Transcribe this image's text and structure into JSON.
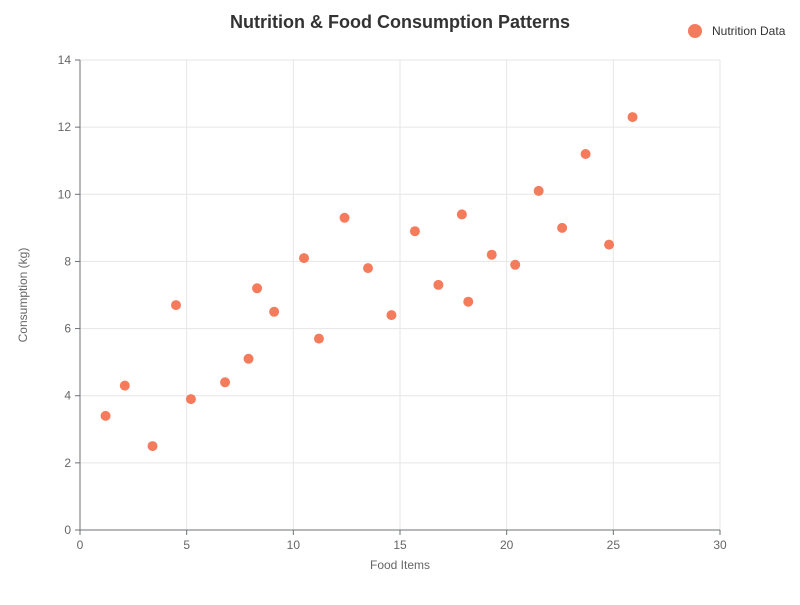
{
  "chart_data": {
    "type": "scatter",
    "title": "Nutrition & Food Consumption Patterns",
    "xlabel": "Food Items",
    "ylabel": "Consumption (kg)",
    "xlim": [
      0,
      30
    ],
    "ylim": [
      0,
      14
    ],
    "x_ticks": [
      0,
      5,
      10,
      15,
      20,
      25,
      30
    ],
    "y_ticks": [
      0,
      2,
      4,
      6,
      8,
      10,
      12,
      14
    ],
    "grid": true,
    "legend_position": "top-right",
    "series": [
      {
        "name": "Nutrition Data",
        "color": "#f47c5d",
        "points": [
          {
            "x": 1.2,
            "y": 3.4
          },
          {
            "x": 2.1,
            "y": 4.3
          },
          {
            "x": 3.4,
            "y": 2.5
          },
          {
            "x": 4.5,
            "y": 6.7
          },
          {
            "x": 5.2,
            "y": 3.9
          },
          {
            "x": 6.8,
            "y": 4.4
          },
          {
            "x": 7.9,
            "y": 5.1
          },
          {
            "x": 8.3,
            "y": 7.2
          },
          {
            "x": 9.1,
            "y": 6.5
          },
          {
            "x": 10.5,
            "y": 8.1
          },
          {
            "x": 11.2,
            "y": 5.7
          },
          {
            "x": 12.4,
            "y": 9.3
          },
          {
            "x": 13.5,
            "y": 7.8
          },
          {
            "x": 14.6,
            "y": 6.4
          },
          {
            "x": 15.7,
            "y": 8.9
          },
          {
            "x": 16.8,
            "y": 7.3
          },
          {
            "x": 17.9,
            "y": 9.4
          },
          {
            "x": 18.2,
            "y": 6.8
          },
          {
            "x": 19.3,
            "y": 8.2
          },
          {
            "x": 20.4,
            "y": 7.9
          },
          {
            "x": 21.5,
            "y": 10.1
          },
          {
            "x": 22.6,
            "y": 9.0
          },
          {
            "x": 23.7,
            "y": 11.2
          },
          {
            "x": 24.8,
            "y": 8.5
          },
          {
            "x": 25.9,
            "y": 12.3
          }
        ]
      }
    ]
  }
}
